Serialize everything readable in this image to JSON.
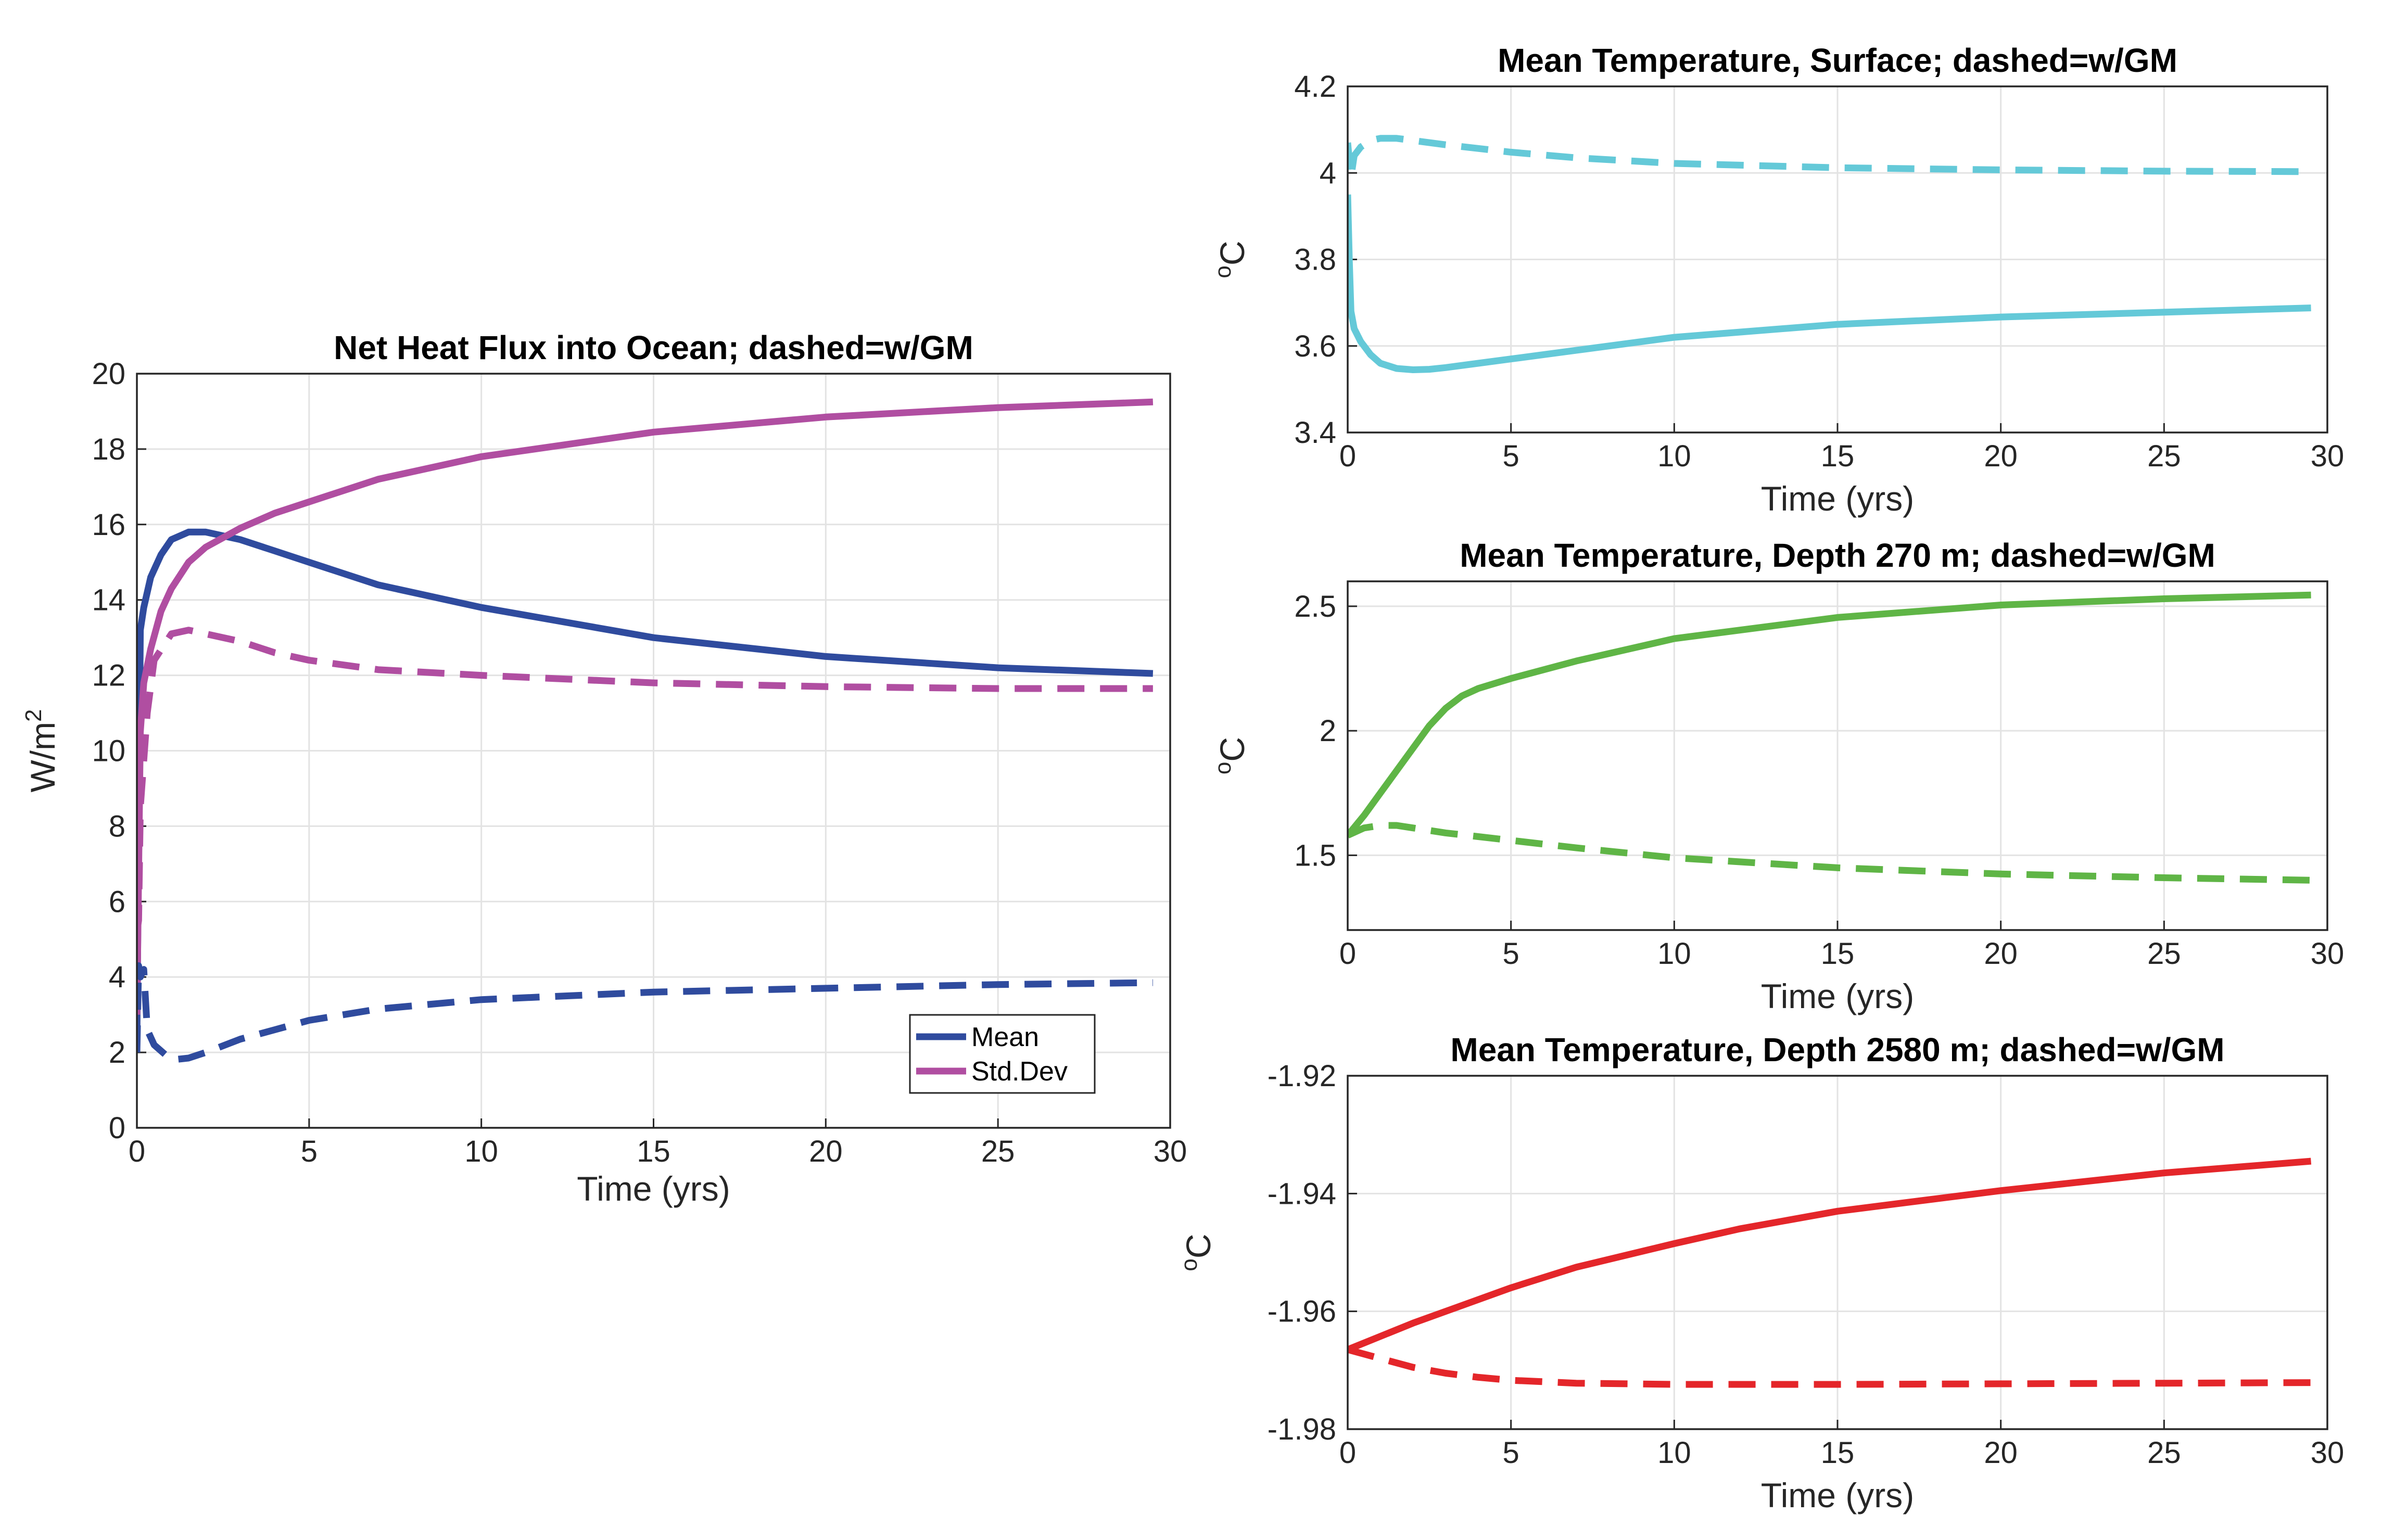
{
  "chart_data": [
    {
      "type": "line",
      "title": "Net Heat Flux into Ocean; dashed=w/GM",
      "xlabel": "Time (yrs)",
      "ylabel_main": "W/m",
      "ylabel_sup": "2",
      "xlim": [
        0,
        30
      ],
      "ylim": [
        0,
        20
      ],
      "xticks": [
        "0",
        "5",
        "10",
        "15",
        "20",
        "25",
        "30"
      ],
      "yticks": [
        "0",
        "2",
        "4",
        "6",
        "8",
        "10",
        "12",
        "14",
        "16",
        "18",
        "20"
      ],
      "grid": true,
      "legend_position": "bottom-right",
      "series": [
        {
          "name": "Mean",
          "style": "solid",
          "color": "#2f4b9e",
          "x": [
            0,
            0.1,
            0.2,
            0.4,
            0.7,
            1,
            1.5,
            2,
            3,
            4,
            5,
            7,
            10,
            15,
            20,
            25,
            29.5
          ],
          "y": [
            2.3,
            13.2,
            13.8,
            14.6,
            15.2,
            15.6,
            15.8,
            15.8,
            15.6,
            15.3,
            15.0,
            14.4,
            13.8,
            13.0,
            12.5,
            12.2,
            12.05
          ]
        },
        {
          "name": "Std.Dev",
          "style": "solid",
          "color": "#b04ea1",
          "x": [
            0,
            0.1,
            0.2,
            0.4,
            0.7,
            1,
            1.5,
            2,
            3,
            4,
            5,
            7,
            10,
            15,
            20,
            25,
            29.5
          ],
          "y": [
            3.0,
            10.5,
            11.8,
            12.7,
            13.7,
            14.3,
            15.0,
            15.4,
            15.9,
            16.3,
            16.6,
            17.2,
            17.8,
            18.45,
            18.85,
            19.1,
            19.25
          ]
        },
        {
          "style": "dashed",
          "color": "#2f4b9e",
          "x": [
            0,
            0.05,
            0.1,
            0.2,
            0.3,
            0.5,
            1,
            1.5,
            2,
            3,
            4,
            5,
            7,
            10,
            15,
            20,
            25,
            29.5
          ],
          "y": [
            2.0,
            4.3,
            4.0,
            4.2,
            2.6,
            2.2,
            1.8,
            1.85,
            2.0,
            2.35,
            2.6,
            2.85,
            3.15,
            3.4,
            3.6,
            3.7,
            3.8,
            3.85
          ]
        },
        {
          "style": "dashed",
          "color": "#b04ea1",
          "x": [
            0,
            0.05,
            0.1,
            0.3,
            0.5,
            1,
            1.5,
            2,
            3,
            4,
            5,
            7,
            10,
            15,
            20,
            25,
            29.5
          ],
          "y": [
            5.2,
            5.5,
            8.5,
            11.0,
            12.4,
            13.1,
            13.2,
            13.1,
            12.9,
            12.6,
            12.4,
            12.15,
            12.0,
            11.8,
            11.7,
            11.65,
            11.65
          ]
        }
      ]
    },
    {
      "type": "line",
      "title": "Mean Temperature, Surface; dashed=w/GM",
      "xlabel": "Time (yrs)",
      "ylabel_sup": "o",
      "ylabel_main": "C",
      "xlim": [
        0,
        30
      ],
      "ylim": [
        3.4,
        4.2
      ],
      "xticks": [
        "0",
        "5",
        "10",
        "15",
        "20",
        "25",
        "30"
      ],
      "yticks": [
        "3.4",
        "3.6",
        "3.8",
        "4",
        "4.2"
      ],
      "grid": true,
      "series": [
        {
          "style": "solid",
          "color": "#64c9d8",
          "x": [
            0,
            0.05,
            0.1,
            0.2,
            0.4,
            0.7,
            1,
            1.5,
            2,
            2.5,
            3,
            4,
            5,
            7,
            10,
            15,
            20,
            25,
            29.5
          ],
          "y": [
            3.95,
            3.8,
            3.68,
            3.64,
            3.61,
            3.58,
            3.56,
            3.548,
            3.545,
            3.546,
            3.55,
            3.56,
            3.57,
            3.59,
            3.62,
            3.65,
            3.667,
            3.678,
            3.688
          ]
        },
        {
          "style": "dashed",
          "color": "#64c9d8",
          "x": [
            0,
            0.1,
            0.2,
            0.4,
            0.7,
            1,
            1.5,
            2,
            3,
            5,
            7,
            10,
            15,
            20,
            25,
            29.5
          ],
          "y": [
            4.07,
            3.99,
            4.04,
            4.06,
            4.075,
            4.08,
            4.08,
            4.075,
            4.065,
            4.048,
            4.035,
            4.022,
            4.012,
            4.007,
            4.004,
            4.003
          ]
        }
      ]
    },
    {
      "type": "line",
      "title": "Mean Temperature, Depth 270 m; dashed=w/GM",
      "xlabel": "Time (yrs)",
      "ylabel_sup": "o",
      "ylabel_main": "C",
      "xlim": [
        0,
        30
      ],
      "ylim": [
        1.2,
        2.6
      ],
      "xticks": [
        "0",
        "5",
        "10",
        "15",
        "20",
        "25",
        "30"
      ],
      "yticks": [
        "1.5",
        "2",
        "2.5"
      ],
      "grid": true,
      "series": [
        {
          "style": "solid",
          "color": "#5fb546",
          "x": [
            0,
            0.5,
            1,
            1.5,
            2,
            2.5,
            3,
            3.5,
            4,
            5,
            7,
            10,
            15,
            20,
            25,
            29.5
          ],
          "y": [
            1.58,
            1.66,
            1.75,
            1.84,
            1.93,
            2.02,
            2.09,
            2.14,
            2.17,
            2.21,
            2.28,
            2.37,
            2.455,
            2.505,
            2.53,
            2.545
          ]
        },
        {
          "style": "dashed",
          "color": "#5fb546",
          "x": [
            0,
            0.5,
            1,
            1.5,
            2,
            3,
            4,
            5,
            7,
            10,
            15,
            20,
            25,
            29.5
          ],
          "y": [
            1.58,
            1.61,
            1.62,
            1.62,
            1.61,
            1.59,
            1.575,
            1.56,
            1.53,
            1.49,
            1.45,
            1.425,
            1.41,
            1.4
          ]
        }
      ]
    },
    {
      "type": "line",
      "title": "Mean Temperature, Depth 2580 m; dashed=w/GM",
      "xlabel": "Time (yrs)",
      "ylabel_sup": "o",
      "ylabel_main": "C",
      "xlim": [
        0,
        30
      ],
      "ylim": [
        -1.98,
        -1.92
      ],
      "xticks": [
        "0",
        "5",
        "10",
        "15",
        "20",
        "25",
        "30"
      ],
      "yticks": [
        "-1.98",
        "-1.96",
        "-1.94",
        "-1.92"
      ],
      "grid": true,
      "series": [
        {
          "style": "solid",
          "color": "#e4262a",
          "x": [
            0,
            2,
            5,
            7,
            10,
            12,
            15,
            20,
            25,
            29.5
          ],
          "y": [
            -1.9665,
            -1.962,
            -1.956,
            -1.9525,
            -1.9485,
            -1.946,
            -1.943,
            -1.9395,
            -1.9365,
            -1.9345
          ]
        },
        {
          "style": "dashed",
          "color": "#e4262a",
          "x": [
            0,
            1,
            2,
            3,
            4,
            5,
            7,
            10,
            15,
            20,
            25,
            29.5
          ],
          "y": [
            -1.9665,
            -1.968,
            -1.9695,
            -1.9705,
            -1.9712,
            -1.9717,
            -1.9722,
            -1.9724,
            -1.9724,
            -1.9723,
            -1.9722,
            -1.9721
          ]
        }
      ]
    }
  ]
}
